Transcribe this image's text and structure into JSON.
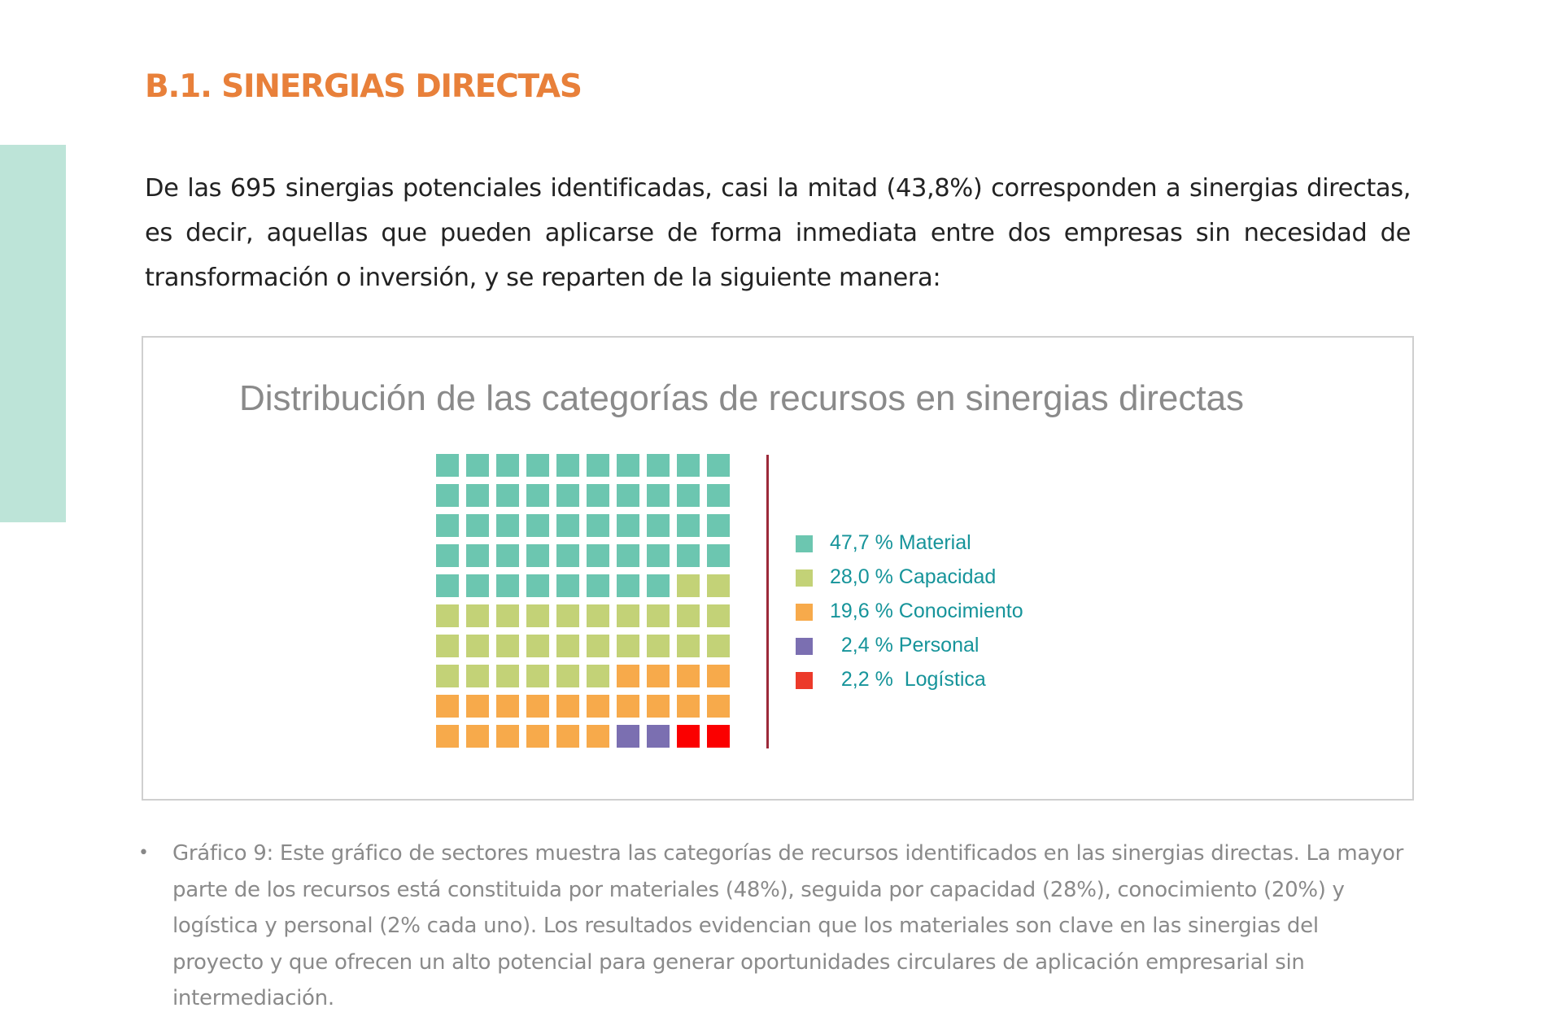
{
  "section": {
    "title": "B.1. SINERGIAS DIRECTAS"
  },
  "intro": {
    "text": "De las 695 sinergias potenciales identificadas, casi la mitad (43,8%) corresponden a sinergias directas, es decir, aquellas que pueden aplicarse de forma inmediata entre dos empresas sin necesidad de transformación o inversión, y se reparten de la siguiente manera:"
  },
  "colors": {
    "accent_orange": "#e8803a",
    "side_accent": "#bde4d8",
    "divider": "#9c2a3a",
    "legend_text": "#16949a"
  },
  "chart_data": {
    "type": "waffle",
    "title": "Distribución de las categorías de recursos en sinergias directas",
    "grid_rows": 10,
    "grid_cols": 10,
    "legend_placement": "right",
    "series": [
      {
        "label": "47,7 % Material",
        "name": "Material",
        "percent": 47.7,
        "cells": 48,
        "color": "#6cc6b0"
      },
      {
        "label": "28,0 % Capacidad",
        "name": "Capacidad",
        "percent": 28.0,
        "cells": 28,
        "color": "#c3d277"
      },
      {
        "label": "19,6 % Conocimiento",
        "name": "Conocimiento",
        "percent": 19.6,
        "cells": 20,
        "color": "#f7aa4b"
      },
      {
        "label": "  2,4 % Personal",
        "name": "Personal",
        "percent": 2.4,
        "cells": 2,
        "color": "#7b6fb1"
      },
      {
        "label": "  2,2 %  Logística",
        "name": "Logística",
        "percent": 2.2,
        "cells": 2,
        "color": "#ec3a2a"
      }
    ]
  },
  "waffle_cell_colors_override": {
    "Logística": "#fb0000"
  },
  "caption": {
    "bullet": "•",
    "text": "Gráfico 9: Este gráfico de sectores muestra las categorías de recursos identificados en las sinergias directas. La mayor parte de los recursos está constituida por materiales (48%), seguida por capacidad (28%), conocimiento (20%) y logística y personal (2% cada uno). Los resultados evidencian que los materiales son clave en las sinergias del proyecto y que ofrecen un alto potencial para generar oportunidades circulares de aplicación empresarial sin intermediación."
  }
}
